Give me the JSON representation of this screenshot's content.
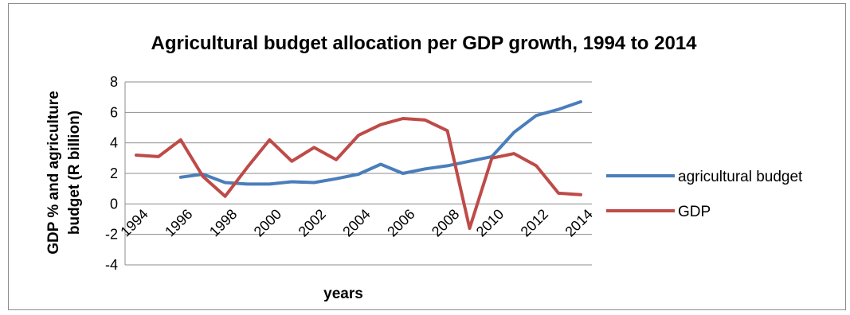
{
  "chart_data": {
    "type": "line",
    "title": "Agricultural budget allocation per GDP growth, 1994 to 2014",
    "xlabel": "years",
    "ylabel_lines": [
      "GDP % and agriculture",
      "budget (R billion)"
    ],
    "x": [
      1994,
      1995,
      1996,
      1997,
      1998,
      1999,
      2000,
      2001,
      2002,
      2003,
      2004,
      2005,
      2006,
      2007,
      2008,
      2009,
      2010,
      2011,
      2012,
      2013,
      2014
    ],
    "x_tick_labels": [
      "1994",
      "1996",
      "1998",
      "2000",
      "2002",
      "2004",
      "2006",
      "2008",
      "2010",
      "2012",
      "2014"
    ],
    "ylim": [
      -4,
      8
    ],
    "y_ticks": [
      -4,
      -2,
      0,
      2,
      4,
      6,
      8
    ],
    "grid": "horizontal",
    "legend_position": "right",
    "series": [
      {
        "name": "agricultural budget",
        "color": "#4a7ebb",
        "values": [
          null,
          null,
          1.75,
          1.95,
          1.4,
          1.3,
          1.3,
          1.45,
          1.4,
          1.65,
          1.95,
          2.6,
          2.0,
          2.3,
          2.5,
          2.8,
          3.1,
          4.7,
          5.8,
          6.2,
          6.7
        ]
      },
      {
        "name": "GDP",
        "color": "#be4b48",
        "values": [
          3.2,
          3.1,
          4.2,
          1.8,
          0.5,
          2.4,
          4.2,
          2.8,
          3.7,
          2.9,
          4.5,
          5.2,
          5.6,
          5.5,
          4.8,
          -1.6,
          3.0,
          3.3,
          2.5,
          0.7,
          0.6
        ]
      }
    ]
  }
}
